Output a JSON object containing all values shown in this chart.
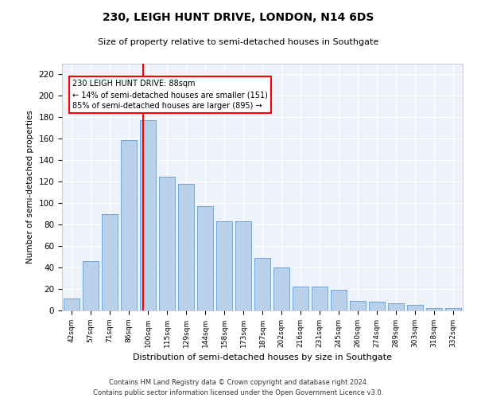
{
  "title1": "230, LEIGH HUNT DRIVE, LONDON, N14 6DS",
  "title2": "Size of property relative to semi-detached houses in Southgate",
  "xlabel": "Distribution of semi-detached houses by size in Southgate",
  "ylabel": "Number of semi-detached properties",
  "categories": [
    "42sqm",
    "57sqm",
    "71sqm",
    "86sqm",
    "100sqm",
    "115sqm",
    "129sqm",
    "144sqm",
    "158sqm",
    "173sqm",
    "187sqm",
    "202sqm",
    "216sqm",
    "231sqm",
    "245sqm",
    "260sqm",
    "274sqm",
    "289sqm",
    "303sqm",
    "318sqm",
    "332sqm"
  ],
  "values": [
    11,
    46,
    90,
    159,
    177,
    125,
    118,
    97,
    83,
    83,
    49,
    40,
    22,
    22,
    19,
    9,
    8,
    7,
    5,
    2,
    2
  ],
  "bar_color": "#b8d0ea",
  "bar_edge_color": "#6699cc",
  "annotation_text": "230 LEIGH HUNT DRIVE: 88sqm\n← 14% of semi-detached houses are smaller (151)\n85% of semi-detached houses are larger (895) →",
  "vline_x": 3.75,
  "ylim": [
    0,
    230
  ],
  "yticks": [
    0,
    20,
    40,
    60,
    80,
    100,
    120,
    140,
    160,
    180,
    200,
    220
  ],
  "footer": "Contains HM Land Registry data © Crown copyright and database right 2024.\nContains public sector information licensed under the Open Government Licence v3.0.",
  "bg_color": "#eef2fb"
}
